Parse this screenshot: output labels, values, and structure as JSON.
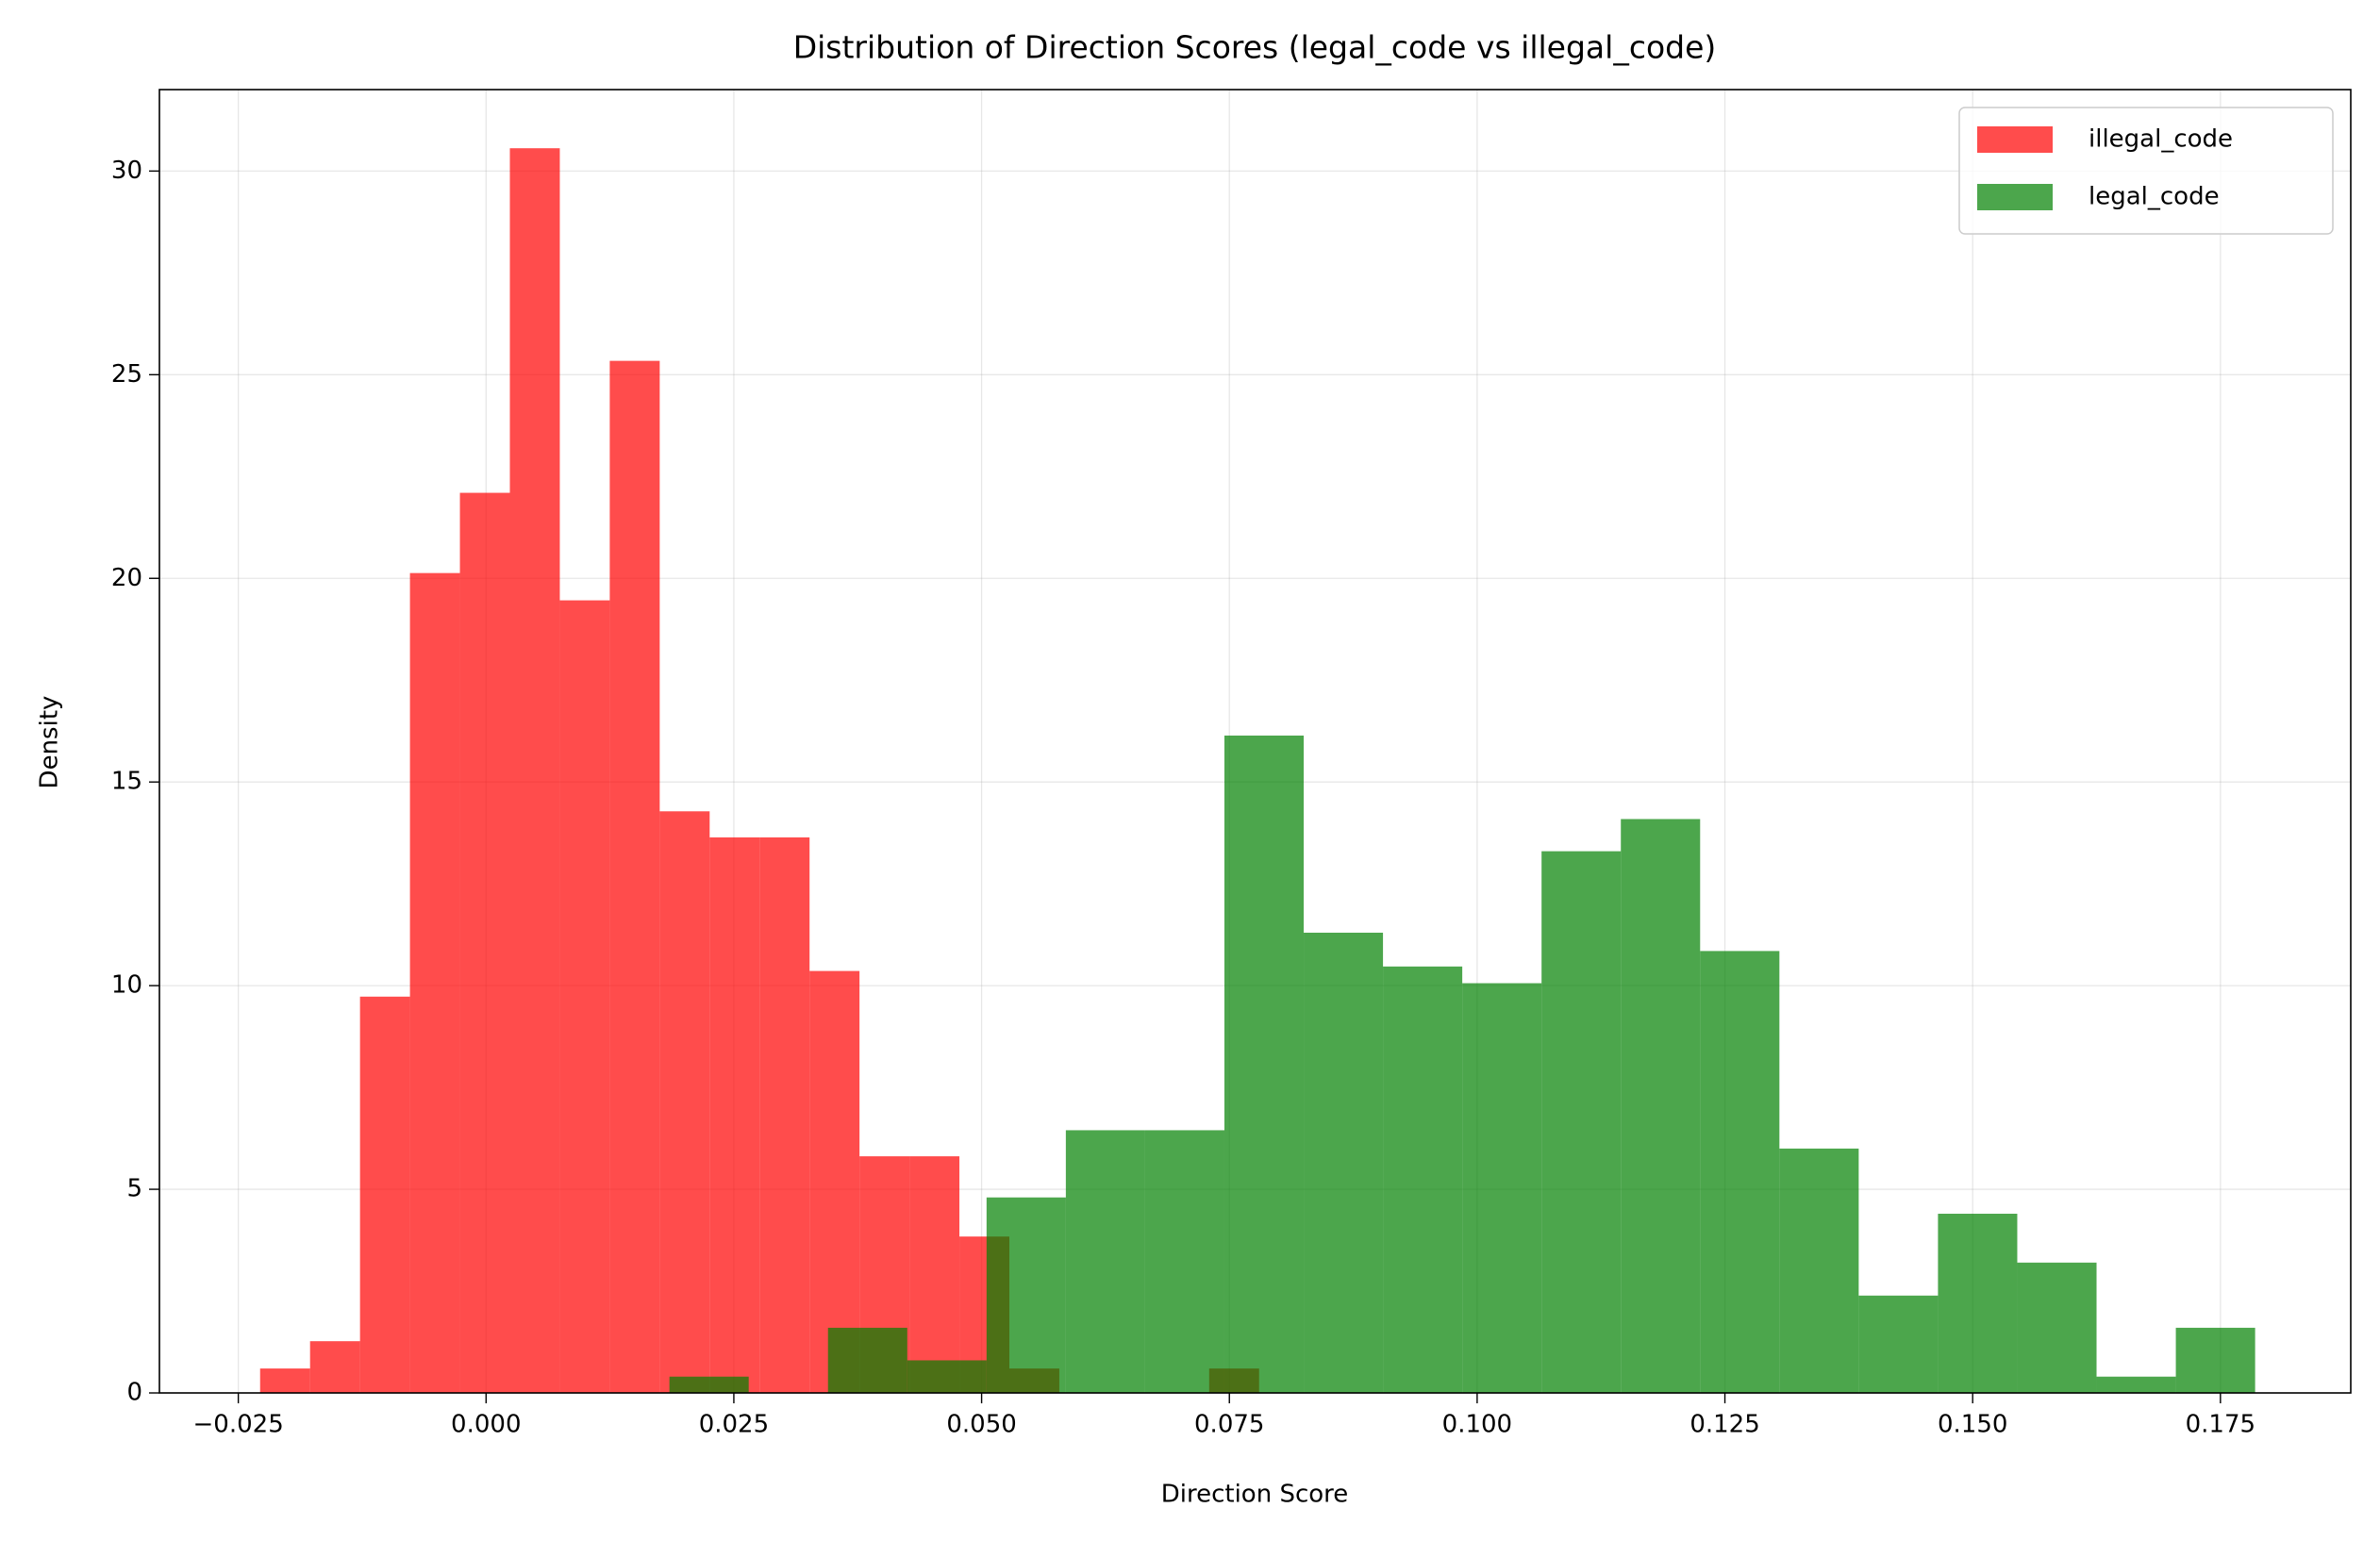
{
  "chart_data": {
    "type": "histogram",
    "title": "Distribution of Direction Scores (legal_code vs illegal_code)",
    "xlabel": "Direction Score",
    "ylabel": "Density",
    "xlim": [
      -0.03296,
      0.18815
    ],
    "ylim": [
      0,
      32
    ],
    "xticks": [
      {
        "value": -0.025,
        "label": "−0.025"
      },
      {
        "value": 0,
        "label": "0.000"
      },
      0.025,
      {
        "value": 0.05,
        "label": "0.050"
      },
      0.075,
      {
        "value": 0.1,
        "label": "0.100"
      },
      0.125,
      {
        "value": 0.15,
        "label": "0.150"
      },
      0.175
    ],
    "yticks": [
      0,
      5,
      10,
      15,
      20,
      25,
      30
    ],
    "grid": true,
    "legend": "upper right",
    "opacity": 0.7,
    "series": [
      {
        "name": "illegal_code",
        "color": "#ff0000",
        "bins": [
          -0.0228,
          -0.01776,
          -0.01272,
          -0.00768,
          -0.00264,
          0.0024,
          0.00744,
          0.01248,
          0.01752,
          0.02256,
          0.0276,
          0.03264,
          0.03768,
          0.04272,
          0.04776,
          0.0528,
          0.05784,
          0.06288,
          0.06792,
          0.07296,
          0.078
        ],
        "values": [
          0.6,
          1.27,
          9.73,
          20.13,
          22.1,
          30.56,
          19.46,
          25.34,
          14.28,
          13.64,
          13.64,
          10.36,
          5.81,
          5.81,
          3.84,
          0.6,
          0,
          0,
          0,
          0.6
        ]
      },
      {
        "name": "legal_code",
        "color": "#008000",
        "bins": [
          0.0185,
          0.0265,
          0.0345,
          0.0425,
          0.0505,
          0.0585,
          0.0665,
          0.0745,
          0.0825,
          0.0905,
          0.0985,
          0.1065,
          0.1145,
          0.1225,
          0.1305,
          0.1385,
          0.1465,
          0.1545,
          0.1625,
          0.1705,
          0.1785
        ],
        "values": [
          0.4,
          0,
          1.6,
          0.8,
          4.8,
          6.45,
          6.45,
          16.14,
          11.3,
          10.47,
          10.06,
          13.3,
          14.09,
          10.85,
          6.0,
          2.39,
          4.4,
          3.2,
          0.4,
          1.6
        ]
      }
    ]
  }
}
